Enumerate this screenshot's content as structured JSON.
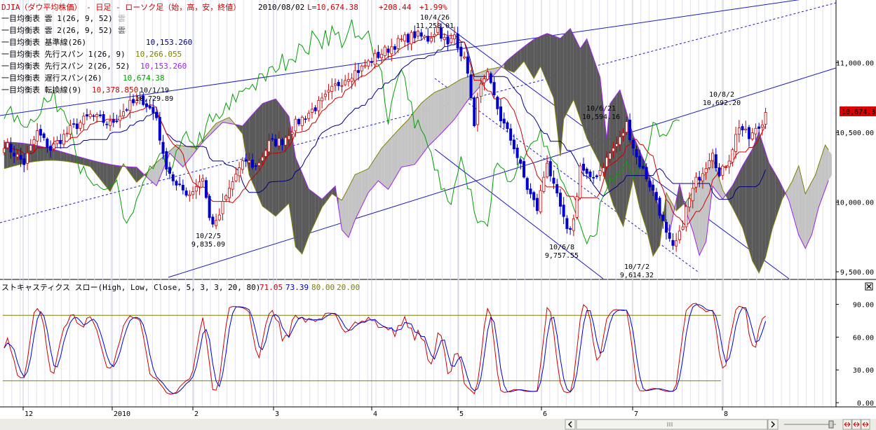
{
  "header": {
    "symbol": "DJIA（ダウ平均株価）",
    "sep1": " - ",
    "interval": "日足",
    "sep2": " - ",
    "style": "ローソク足（始，高，安，終値）",
    "date": "2010/08/02",
    "last": "L=10,674.38",
    "change": "+208.44",
    "pct": "+1.99%"
  },
  "legend": [
    {
      "label": "一目均衡表 雲 1(26, 9, 52)",
      "value": "雲",
      "color": "#aaaaaa"
    },
    {
      "label": "一目均衡表 雲 2(26, 9, 52)",
      "value": "雲",
      "color": "#555555"
    },
    {
      "label": "一目均衡表 基準線(26)",
      "value": "10,153.260",
      "color": "#000080"
    },
    {
      "label": "一目均衡表 先行スパン 1(26, 9)",
      "value": "10,266.055",
      "color": "#808000"
    },
    {
      "label": "一目均衡表 先行スパン 2(26, 52)",
      "value": "10,153.260",
      "color": "#a020f0"
    },
    {
      "label": "一目均衡表 遅行スパン(26)",
      "value": "10,674.38",
      "color": "#00a000"
    },
    {
      "label": "一目均衡表 転換線(9)",
      "value": "10,378.850",
      "color": "#cc0000"
    }
  ],
  "stoch_header": {
    "label": "ストキャスティクス スロー(High, Low, Close, 5, 3, 3, 20, 80)",
    "k": "71.05",
    "d": "73.39",
    "upper": "80.00",
    "lower": "20.00"
  },
  "price_axis": {
    "ticks": [
      "11,000.00",
      "10,500.00",
      "10,000.00",
      "9,500.00"
    ],
    "last_badge": "10,674.38"
  },
  "stoch_axis": {
    "ticks": [
      "90.00",
      "60.00",
      "30.00",
      "0.00"
    ]
  },
  "x_axis": {
    "labels": [
      "12",
      "2010",
      "2",
      "3",
      "4",
      "5",
      "6",
      "7",
      "8"
    ]
  },
  "annotations": [
    {
      "date": "10/1/19",
      "value": "10,729.89"
    },
    {
      "date": "10/4/26",
      "value": "11,258.01"
    },
    {
      "date": "10/2/5",
      "value": "9,835.09"
    },
    {
      "date": "10/6/21",
      "value": "10,594.16"
    },
    {
      "date": "10/6/8",
      "value": "9,757.55"
    },
    {
      "date": "10/7/2",
      "value": "9,614.32"
    },
    {
      "date": "10/8/2",
      "value": "10,692.20"
    }
  ],
  "chart_data": {
    "type": "candlestick",
    "price_range": [
      9450,
      11450
    ],
    "stoch_range": [
      0,
      100
    ],
    "series": [
      {
        "name": "転換線(9)",
        "color": "#cc0000"
      },
      {
        "name": "基準線(26)",
        "color": "#000080"
      },
      {
        "name": "先行スパン 1(26, 9)",
        "color": "#808000"
      },
      {
        "name": "先行スパン 2(26, 52)",
        "color": "#a020f0"
      },
      {
        "name": "遅行スパン(26)",
        "color": "#00a000"
      },
      {
        "name": "%K",
        "color": "#cc0000"
      },
      {
        "name": "%D",
        "color": "#0000cc"
      }
    ],
    "stoch_levels": [
      80,
      20
    ]
  }
}
